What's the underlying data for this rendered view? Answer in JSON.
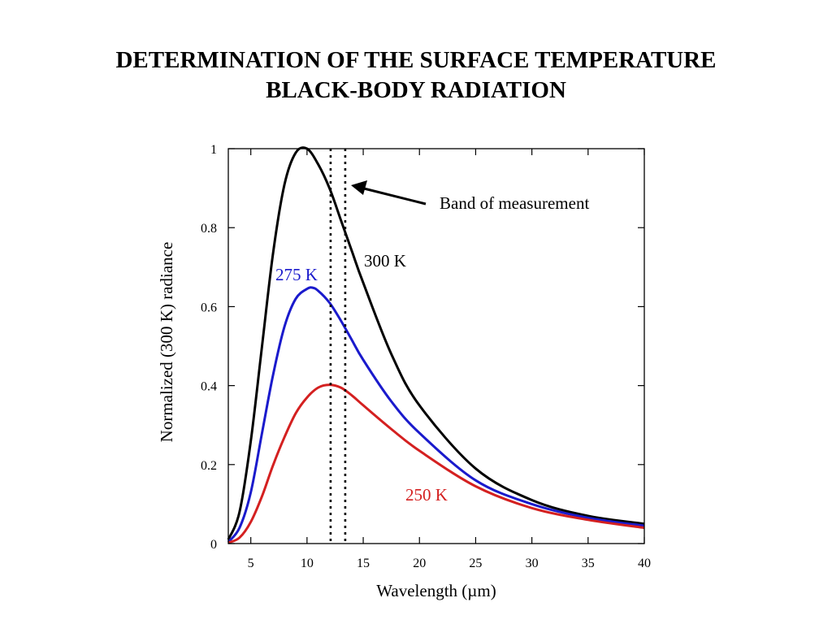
{
  "title_line1": "DETERMINATION OF THE SURFACE TEMPERATURE",
  "title_line2": "BLACK-BODY RADIATION",
  "chart_data": {
    "type": "line",
    "xlabel": "Wavelength (µm)",
    "ylabel": "Normalized (300 K) radiance",
    "xlim": [
      3,
      40
    ],
    "ylim": [
      0,
      1
    ],
    "x_ticks": [
      5,
      10,
      15,
      20,
      25,
      30,
      35,
      40
    ],
    "y_ticks": [
      0,
      0.2,
      0.4,
      0.6,
      0.8,
      1
    ],
    "y_tick_labels": [
      "0",
      "0.2",
      "0.4",
      "0.6",
      "0.8",
      "1"
    ],
    "grid": false,
    "series": [
      {
        "name": "300 K",
        "color": "#000000",
        "x": [
          3,
          4,
          5,
          6,
          7,
          8,
          9,
          10,
          11,
          12,
          13,
          14,
          15,
          17.5,
          20,
          25,
          30,
          35,
          40
        ],
        "values": [
          0.01,
          0.08,
          0.26,
          0.5,
          0.74,
          0.91,
          0.99,
          1.0,
          0.96,
          0.9,
          0.82,
          0.74,
          0.66,
          0.48,
          0.35,
          0.19,
          0.11,
          0.07,
          0.05
        ]
      },
      {
        "name": "275 K",
        "color": "#1a1acc",
        "x": [
          3,
          4,
          5,
          6,
          7,
          8,
          9,
          10,
          10.5,
          11,
          12,
          13,
          14,
          15,
          17.5,
          20,
          25,
          30,
          35,
          40
        ],
        "values": [
          0.004,
          0.04,
          0.13,
          0.28,
          0.43,
          0.55,
          0.62,
          0.645,
          0.648,
          0.64,
          0.61,
          0.565,
          0.515,
          0.465,
          0.36,
          0.28,
          0.16,
          0.1,
          0.065,
          0.045
        ]
      },
      {
        "name": "250 K",
        "color": "#d42020",
        "x": [
          3,
          4,
          5,
          6,
          7,
          8,
          9,
          10,
          11,
          12,
          13,
          14,
          15,
          17.5,
          20,
          25,
          30,
          35,
          40
        ],
        "values": [
          0.002,
          0.015,
          0.055,
          0.12,
          0.2,
          0.27,
          0.33,
          0.37,
          0.395,
          0.402,
          0.395,
          0.375,
          0.35,
          0.29,
          0.235,
          0.145,
          0.09,
          0.06,
          0.04
        ]
      }
    ],
    "band_lines_x": [
      12.1,
      13.4
    ],
    "annotations": [
      {
        "text": "Band of measurement",
        "x": 13.6,
        "y": 0.895
      },
      {
        "text": "300 K",
        "x": 15,
        "y": 0.72
      },
      {
        "text": "275 K",
        "x": 7.2,
        "y": 0.66
      },
      {
        "text": "250 K",
        "x": 18,
        "y": 0.12
      }
    ]
  }
}
